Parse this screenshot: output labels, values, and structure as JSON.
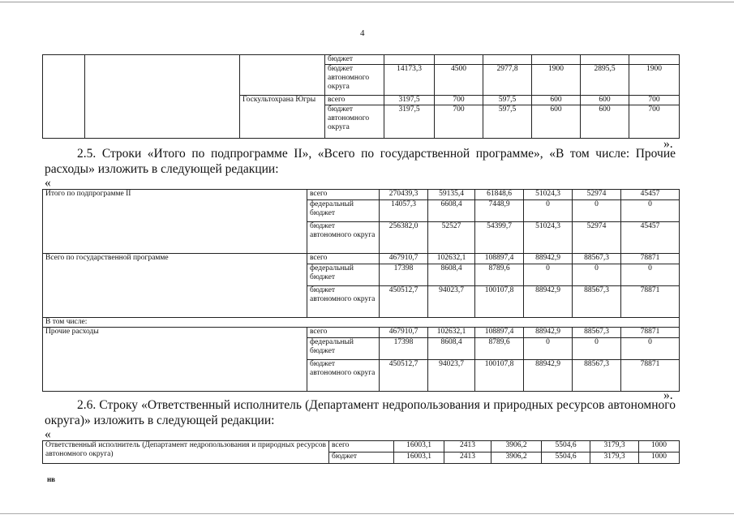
{
  "page_number": "4",
  "top_table": {
    "rows": [
      {
        "type": "бюджет",
        "values": [
          "",
          "",
          "",
          "",
          "",
          ""
        ]
      },
      {
        "type": "бюджет автономного округа",
        "values": [
          "14173,3",
          "4500",
          "2977,8",
          "1900",
          "2895,5",
          "1900"
        ]
      }
    ],
    "org": {
      "name": "Госкультохрана Югры",
      "rows": [
        {
          "type": "всего",
          "values": [
            "3197,5",
            "700",
            "597,5",
            "600",
            "600",
            "700"
          ]
        },
        {
          "type": "бюджет автономного округа",
          "values": [
            "3197,5",
            "700",
            "597,5",
            "600",
            "600",
            "700"
          ]
        }
      ]
    }
  },
  "close_quote_1": "».",
  "section_2_5": "2.5. Строки «Итого по подпрограмме II», «Всего по государственной программе», «В том числе: Прочие расходы» изложить в следующей редакции:",
  "open_quote_1": "«",
  "mid_table": {
    "groups": [
      {
        "label": "Итого по подпрограмме II",
        "rows": [
          {
            "type": "всего",
            "values": [
              "270439,3",
              "59135,4",
              "61848,6",
              "51024,3",
              "52974",
              "45457"
            ]
          },
          {
            "type": "федеральный бюджет",
            "values": [
              "14057,3",
              "6608,4",
              "7448,9",
              "0",
              "0",
              "0"
            ]
          },
          {
            "type": "бюджет автономного округа",
            "values": [
              "256382,0",
              "52527",
              "54399,7",
              "51024,3",
              "52974",
              "45457"
            ]
          }
        ]
      },
      {
        "label": "Всего по государственной программе",
        "rows": [
          {
            "type": "всего",
            "values": [
              "467910,7",
              "102632,1",
              "108897,4",
              "88942,9",
              "88567,3",
              "78871"
            ]
          },
          {
            "type": "федеральный бюджет",
            "values": [
              "17398",
              "8608,4",
              "8789,6",
              "0",
              "0",
              "0"
            ]
          },
          {
            "type": "бюджет автономного округа",
            "values": [
              "450512,7",
              "94023,7",
              "100107,8",
              "88942,9",
              "88567,3",
              "78871"
            ]
          }
        ]
      },
      {
        "subheader": "В том числе:"
      },
      {
        "label": "Прочие расходы",
        "rows": [
          {
            "type": "всего",
            "values": [
              "467910,7",
              "102632,1",
              "108897,4",
              "88942,9",
              "88567,3",
              "78871"
            ]
          },
          {
            "type": "федеральный бюджет",
            "values": [
              "17398",
              "8608,4",
              "8789,6",
              "0",
              "0",
              "0"
            ]
          },
          {
            "type": "бюджет автономного округа",
            "values": [
              "450512,7",
              "94023,7",
              "100107,8",
              "88942,9",
              "88567,3",
              "78871"
            ]
          }
        ]
      }
    ]
  },
  "close_quote_2": "».",
  "section_2_6": "2.6. Строку «Ответственный исполнитель (Департамент недропользования и природных ресурсов автономного округа)» изложить в следующей редакции:",
  "open_quote_2": "«",
  "bottom_table": {
    "label": "Ответственный исполнитель (Департамент недропользования и природных ресурсов автономного округа)",
    "rows": [
      {
        "type": "всего",
        "values": [
          "16003,1",
          "2413",
          "3906,2",
          "5504,6",
          "3179,3",
          "1000"
        ]
      },
      {
        "type": "бюджет",
        "values": [
          "16003,1",
          "2413",
          "3906,2",
          "5504,6",
          "3179,3",
          "1000"
        ]
      }
    ]
  },
  "footer_mark": "нв"
}
